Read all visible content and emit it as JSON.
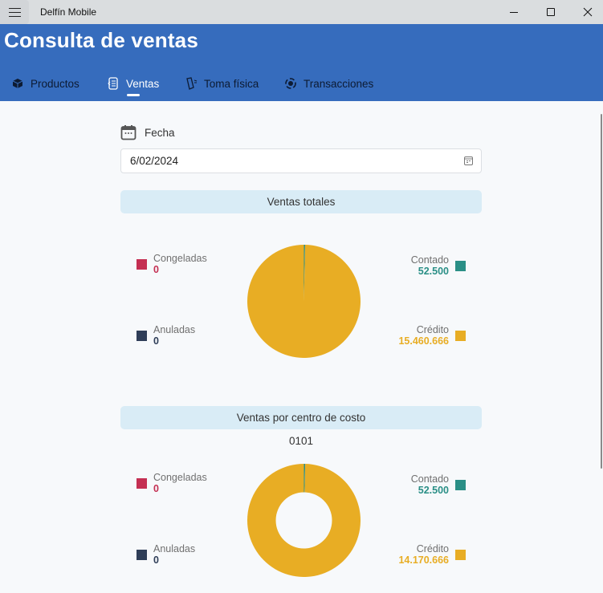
{
  "window": {
    "title": "Delfín Mobile",
    "controls": {
      "minimize": "minimize",
      "maximize": "maximize",
      "close": "close"
    }
  },
  "header": {
    "title": "Consulta de ventas",
    "tabs": [
      {
        "label": "Productos",
        "icon": "box-icon",
        "active": false
      },
      {
        "label": "Ventas",
        "icon": "receipt-icon",
        "active": true
      },
      {
        "label": "Toma física",
        "icon": "handheld-scanner-icon",
        "active": false
      },
      {
        "label": "Transacciones",
        "icon": "transactions-icon",
        "active": false
      }
    ]
  },
  "colors": {
    "header": "#366cbd",
    "congeladas": "#c42f52",
    "anuladas": "#2f3e58",
    "contado": "#2a8f86",
    "credito": "#e8ad24",
    "section_bar": "#d9ecf6"
  },
  "filter": {
    "label": "Fecha",
    "date_value": "6/02/2024"
  },
  "ventas_totales": {
    "title": "Ventas totales",
    "legend": {
      "congeladas": {
        "label": "Congeladas",
        "value": "0"
      },
      "anuladas": {
        "label": "Anuladas",
        "value": "0"
      },
      "contado": {
        "label": "Contado",
        "value": "52.500"
      },
      "credito": {
        "label": "Crédito",
        "value": "15.460.666"
      }
    }
  },
  "ventas_centro_costo": {
    "title": "Ventas por centro de costo",
    "cost_center": "0101",
    "legend": {
      "congeladas": {
        "label": "Congeladas",
        "value": "0"
      },
      "anuladas": {
        "label": "Anuladas",
        "value": "0"
      },
      "contado": {
        "label": "Contado",
        "value": "52.500"
      },
      "credito": {
        "label": "Crédito",
        "value": "14.170.666"
      }
    }
  },
  "chart_data": [
    {
      "type": "pie",
      "title": "Ventas totales",
      "categories": [
        "Congeladas",
        "Anuladas",
        "Contado",
        "Crédito"
      ],
      "values": [
        0,
        0,
        52500,
        15460666
      ],
      "colors": [
        "#c42f52",
        "#2f3e58",
        "#2a8f86",
        "#e8ad24"
      ]
    },
    {
      "type": "pie",
      "subtype": "donut",
      "title": "Ventas por centro de costo",
      "subtitle": "0101",
      "categories": [
        "Congeladas",
        "Anuladas",
        "Contado",
        "Crédito"
      ],
      "values": [
        0,
        0,
        52500,
        14170666
      ],
      "colors": [
        "#c42f52",
        "#2f3e58",
        "#2a8f86",
        "#e8ad24"
      ]
    }
  ]
}
